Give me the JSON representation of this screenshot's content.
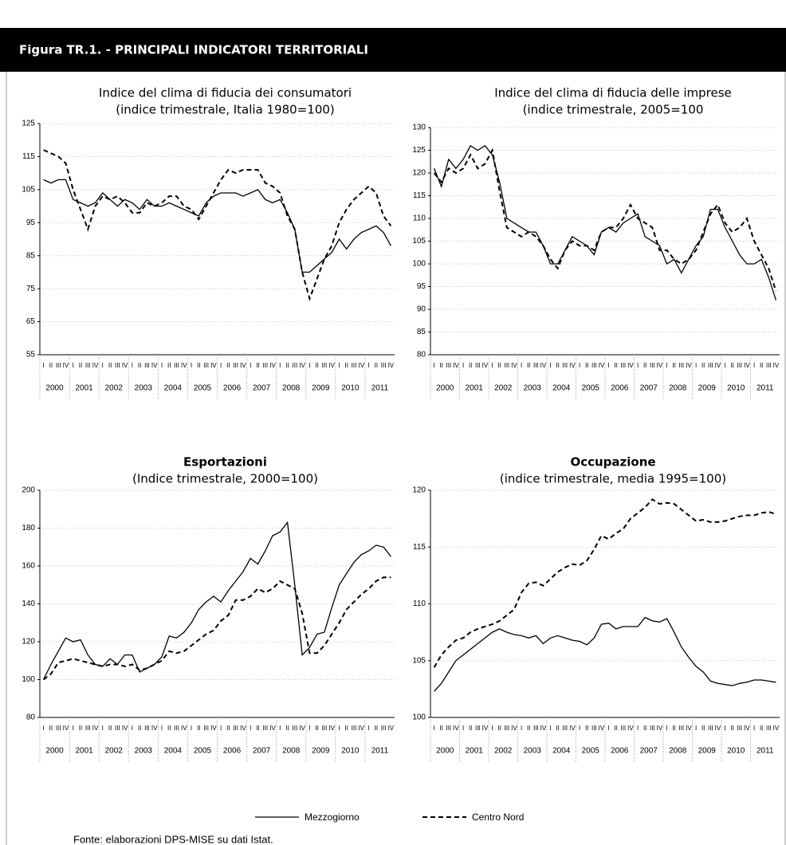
{
  "header": {
    "title": "Figura TR.1. - PRINCIPALI INDICATORI TERRITORIALI"
  },
  "years": [
    "2000",
    "2001",
    "2002",
    "2003",
    "2004",
    "2005",
    "2006",
    "2007",
    "2008",
    "2009",
    "2010",
    "2011"
  ],
  "quarters": [
    "I",
    "II",
    "III",
    "IV"
  ],
  "legend": [
    "Mezzogiorno",
    "Centro Nord"
  ],
  "source": "Fonte: elaborazioni DPS-MISE su dati Istat.",
  "chart_data": [
    {
      "type": "line",
      "title": "Indice del clima di fiducia dei consumatori",
      "subtitle": "(indice trimestrale, Italia 1980=100)",
      "ylim": [
        55,
        125
      ],
      "yticks": [
        55,
        65,
        75,
        85,
        95,
        105,
        115,
        125
      ],
      "grid": true,
      "series": [
        {
          "color": "#000000",
          "dash": "solid",
          "values": [
            108,
            107,
            108,
            108,
            102,
            101,
            100,
            101,
            104,
            102,
            100,
            102,
            101,
            99,
            102,
            100,
            100,
            101,
            100,
            99,
            98,
            97,
            101,
            103,
            104,
            104,
            104,
            103,
            104,
            105,
            102,
            101,
            102,
            98,
            93,
            80,
            80,
            82,
            84,
            86,
            90,
            87,
            90,
            92,
            93,
            94,
            92,
            88
          ]
        },
        {
          "color": "#000000",
          "dash": "dashed",
          "values": [
            117,
            116,
            115,
            113,
            105,
            99,
            93,
            100,
            103,
            102,
            103,
            101,
            98,
            98,
            101,
            100,
            101,
            103,
            103,
            100,
            99,
            96,
            100,
            104,
            108,
            111,
            110,
            111,
            111,
            111,
            107,
            106,
            104,
            97,
            93,
            80,
            72,
            78,
            84,
            88,
            95,
            99,
            102,
            104,
            106,
            104,
            97,
            94
          ]
        }
      ]
    },
    {
      "type": "line",
      "title": "Indice del clima di fiducia delle imprese",
      "subtitle": "(indice trimestrale, 2005=100",
      "ylim": [
        80,
        130
      ],
      "yticks": [
        80,
        85,
        90,
        95,
        100,
        105,
        110,
        115,
        120,
        125,
        130
      ],
      "grid": true,
      "series": [
        {
          "color": "#000000",
          "dash": "solid",
          "values": [
            121,
            117,
            123,
            121,
            123,
            126,
            125,
            126,
            124,
            118,
            110,
            109,
            108,
            107,
            107,
            104,
            100,
            100,
            103,
            106,
            105,
            104,
            102,
            107,
            108,
            107,
            109,
            110,
            111,
            106,
            105,
            104,
            100,
            101,
            98,
            101,
            104,
            106,
            112,
            112,
            108,
            105,
            102,
            100,
            100,
            101,
            97,
            92
          ]
        },
        {
          "color": "#000000",
          "dash": "dashed",
          "values": [
            120,
            118,
            121,
            120,
            121,
            124,
            121,
            122,
            125,
            116,
            108,
            107,
            106,
            107,
            106,
            104,
            101,
            99,
            103,
            105,
            104,
            104,
            103,
            107,
            108,
            108,
            110,
            113,
            110,
            109,
            108,
            103,
            103,
            101,
            100,
            101,
            103,
            107,
            111,
            113,
            109,
            107,
            108,
            110,
            105,
            102,
            99,
            94
          ]
        }
      ]
    },
    {
      "type": "line",
      "title": "Esportazioni",
      "subtitle": "(Indice trimestrale, 2000=100)",
      "ylim": [
        80,
        200
      ],
      "yticks": [
        80,
        100,
        120,
        140,
        160,
        180,
        200
      ],
      "grid": true,
      "series": [
        {
          "color": "#000000",
          "dash": "solid",
          "values": [
            100,
            108,
            115,
            122,
            120,
            121,
            113,
            108,
            107,
            111,
            108,
            113,
            113,
            104,
            106,
            108,
            112,
            123,
            122,
            125,
            130,
            137,
            141,
            144,
            141,
            147,
            152,
            157,
            164,
            161,
            168,
            176,
            178,
            183,
            150,
            113,
            117,
            124,
            125,
            138,
            150,
            156,
            162,
            166,
            168,
            171,
            170,
            165
          ]
        },
        {
          "color": "#000000",
          "dash": "dashed",
          "values": [
            100,
            103,
            109,
            110,
            111,
            110,
            109,
            108,
            107,
            108,
            108,
            107,
            108,
            105,
            106,
            108,
            110,
            115,
            114,
            115,
            118,
            121,
            124,
            126,
            131,
            134,
            142,
            142,
            144,
            148,
            146,
            148,
            152,
            150,
            148,
            135,
            114,
            114,
            118,
            124,
            130,
            137,
            141,
            145,
            148,
            152,
            154,
            154
          ]
        }
      ]
    },
    {
      "type": "line",
      "title": "Occupazione",
      "subtitle": "(indice trimestrale, media 1995=100)",
      "ylim": [
        100,
        120
      ],
      "yticks": [
        100,
        105,
        110,
        115,
        120
      ],
      "grid": true,
      "series": [
        {
          "color": "#000000",
          "dash": "solid",
          "values": [
            102.3,
            103,
            104,
            105,
            105.5,
            106,
            106.5,
            107,
            107.5,
            107.8,
            107.5,
            107.3,
            107.2,
            107,
            107.2,
            106.5,
            107,
            107.2,
            107,
            106.8,
            106.7,
            106.4,
            107,
            108.2,
            108.3,
            107.8,
            108,
            108,
            108,
            108.8,
            108.5,
            108.4,
            108.7,
            107.5,
            106.2,
            105.3,
            104.5,
            104,
            103.2,
            103,
            102.9,
            102.8,
            103,
            103.1,
            103.3,
            103.3,
            103.2,
            103.1
          ]
        },
        {
          "color": "#000000",
          "dash": "dashed",
          "values": [
            104.4,
            105.5,
            106.2,
            106.8,
            107,
            107.5,
            107.8,
            108,
            108.2,
            108.5,
            109,
            109.5,
            111,
            111.8,
            111.9,
            111.6,
            112.2,
            112.8,
            113.2,
            113.5,
            113.4,
            113.8,
            114.8,
            116,
            115.7,
            116.2,
            116.6,
            117.5,
            118,
            118.5,
            119.2,
            118.8,
            118.9,
            118.8,
            118.3,
            117.8,
            117.3,
            117.4,
            117.2,
            117.2,
            117.3,
            117.5,
            117.7,
            117.8,
            117.8,
            118,
            118.1,
            117.9
          ]
        }
      ]
    }
  ]
}
